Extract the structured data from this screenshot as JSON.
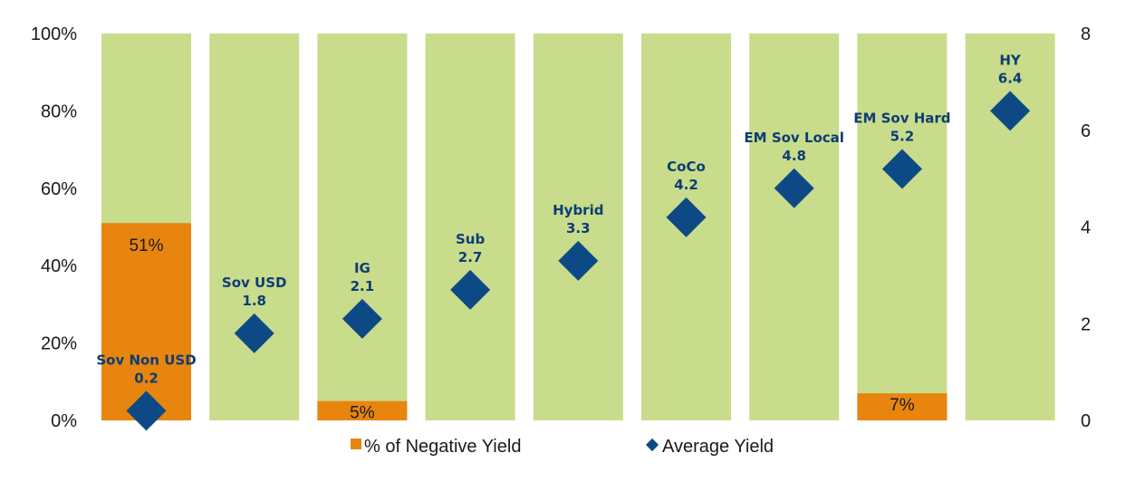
{
  "chart_data": {
    "type": "bar",
    "categories": [
      "Sov Non USD",
      "Sov USD",
      "IG",
      "Sub",
      "Hybrid",
      "CoCo",
      "EM Sov Local",
      "EM Sov Hard",
      "HY"
    ],
    "series": [
      {
        "name": "% of Negative Yield",
        "type": "bar",
        "axis": "left",
        "values": [
          51,
          0,
          5,
          0,
          0,
          0,
          0,
          7,
          0
        ],
        "labels": [
          "51%",
          "",
          "5%",
          "",
          "",
          "",
          "",
          "7%",
          ""
        ]
      },
      {
        "name": "Average Yield",
        "type": "scatter",
        "axis": "right",
        "values": [
          0.2,
          1.8,
          2.1,
          2.7,
          3.3,
          4.2,
          4.8,
          5.2,
          6.4
        ],
        "labels": [
          "0.2",
          "1.8",
          "2.1",
          "2.7",
          "3.3",
          "4.2",
          "4.8",
          "5.2",
          "6.4"
        ]
      }
    ],
    "y_left": {
      "min": 0,
      "max": 100,
      "ticks": [
        "0%",
        "20%",
        "40%",
        "60%",
        "80%",
        "100%"
      ]
    },
    "y_right": {
      "min": 0,
      "max": 8,
      "ticks": [
        "0",
        "2",
        "4",
        "6",
        "8"
      ]
    },
    "title": "",
    "xlabel": "",
    "legend_position": "bottom",
    "grid": false,
    "colors": {
      "background_bar": "#c8dc8c",
      "negative_bar": "#e8850f",
      "marker": "#0d4a85",
      "category_label": "#0d3d73"
    }
  }
}
